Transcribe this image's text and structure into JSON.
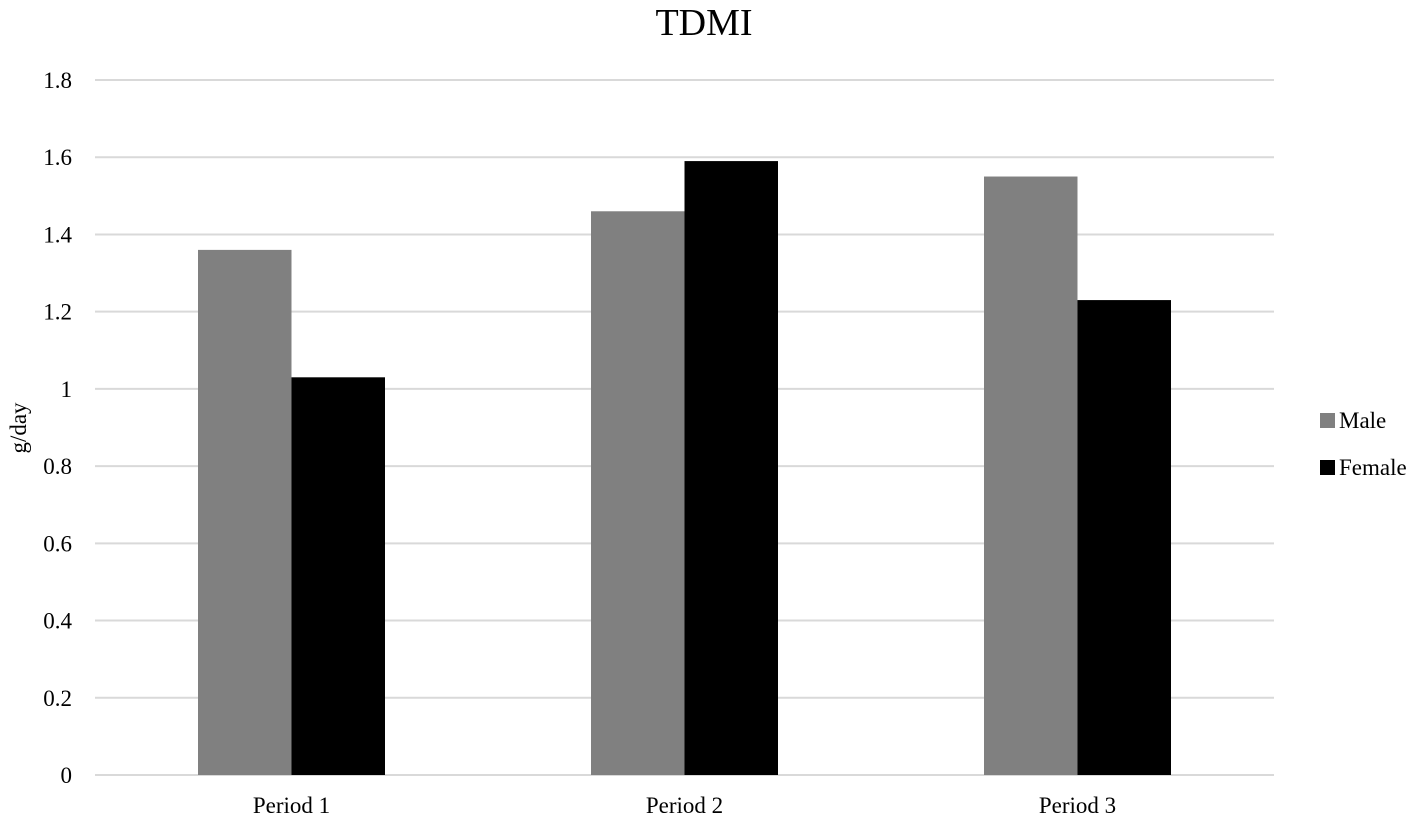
{
  "chart_data": {
    "type": "bar",
    "title": "TDMI",
    "xlabel": "",
    "ylabel": "g/day",
    "categories": [
      "Period 1",
      "Period 2",
      "Period 3"
    ],
    "series": [
      {
        "name": "Male",
        "values": [
          1.36,
          1.46,
          1.55
        ],
        "color": "#808080"
      },
      {
        "name": "Female",
        "values": [
          1.03,
          1.59,
          1.23
        ],
        "color": "#000000"
      }
    ],
    "ylim": [
      0,
      1.8
    ],
    "yticks": [
      "0",
      "0.2",
      "0.4",
      "0.6",
      "0.8",
      "1",
      "1.2",
      "1.4",
      "1.6",
      "1.8"
    ],
    "grid": true,
    "legend_position": "right"
  }
}
